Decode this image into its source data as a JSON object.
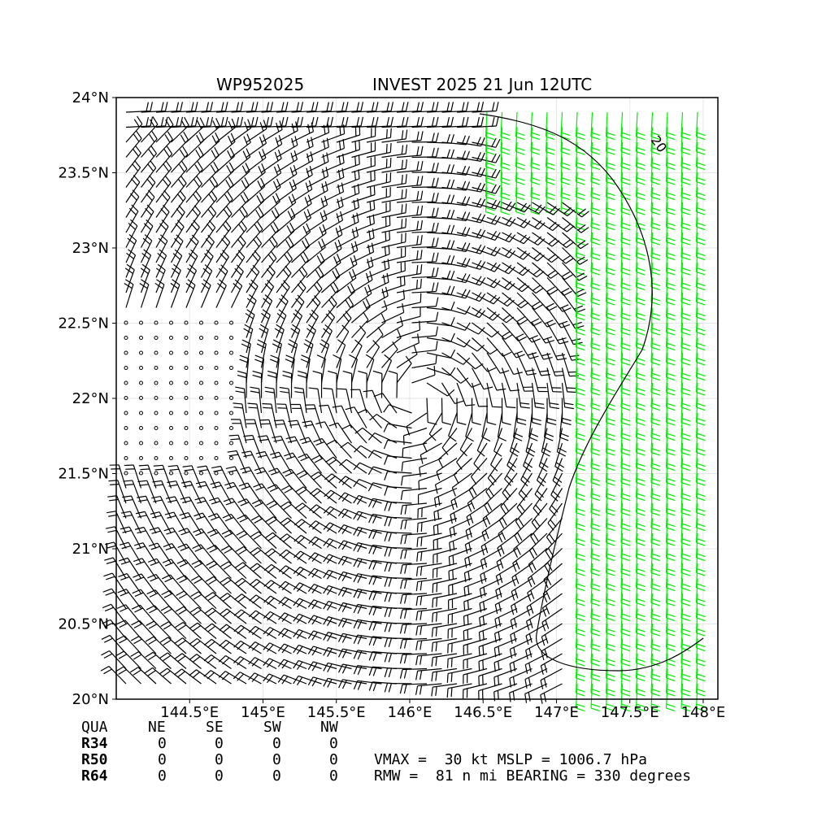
{
  "header": {
    "storm_id": "WP952025",
    "title": "INVEST 2025 21 Jun 12UTC"
  },
  "chart_data": {
    "type": "wind_barb_map",
    "x_range_deg_e": [
      144.0,
      148.1
    ],
    "y_range_deg_n": [
      20.0,
      24.0
    ],
    "x_ticks": [
      {
        "value": 144.5,
        "label": "144.5°E"
      },
      {
        "value": 145.0,
        "label": "145°E"
      },
      {
        "value": 145.5,
        "label": "145.5°E"
      },
      {
        "value": 146.0,
        "label": "146°E"
      },
      {
        "value": 146.5,
        "label": "146.5°E"
      },
      {
        "value": 147.0,
        "label": "147°E"
      },
      {
        "value": 147.5,
        "label": "147.5°E"
      },
      {
        "value": 148.0,
        "label": "148°E"
      }
    ],
    "y_ticks": [
      {
        "value": 20.0,
        "label": "20°N"
      },
      {
        "value": 20.5,
        "label": "20.5°N"
      },
      {
        "value": 21.0,
        "label": "21°N"
      },
      {
        "value": 21.5,
        "label": "21.5°N"
      },
      {
        "value": 22.0,
        "label": "22°N"
      },
      {
        "value": 22.5,
        "label": "22.5°N"
      },
      {
        "value": 23.0,
        "label": "23°N"
      },
      {
        "value": 23.5,
        "label": "23.5°N"
      },
      {
        "value": 24.0,
        "label": "24°N"
      }
    ],
    "grid": true,
    "circulation_center": {
      "lon": 146.05,
      "lat": 22.0
    },
    "contour_label": "20",
    "barb_colors": {
      "normal": "#000000",
      "strong": "#00ee00"
    }
  },
  "table": {
    "headers": [
      "QUA",
      "NE",
      "SE",
      "SW",
      "NW"
    ],
    "rows": [
      {
        "label": "R34",
        "values": [
          "0",
          "0",
          "0",
          "0"
        ]
      },
      {
        "label": "R50",
        "values": [
          "0",
          "0",
          "0",
          "0"
        ]
      },
      {
        "label": "R64",
        "values": [
          "0",
          "0",
          "0",
          "0"
        ]
      }
    ]
  },
  "stats": {
    "line1": "VMAX =  30 kt MSLP = 1006.7 hPa",
    "line2": "RMW =  81 n mi BEARING = 330 degrees"
  }
}
